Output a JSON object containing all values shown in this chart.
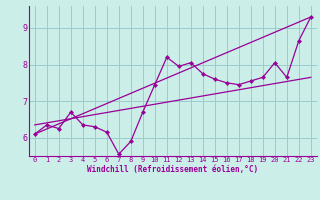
{
  "xlabel": "Windchill (Refroidissement éolien,°C)",
  "bg_color": "#cceee8",
  "line_color": "#990099",
  "grid_color": "#99cccc",
  "x_ticks": [
    0,
    1,
    2,
    3,
    4,
    5,
    6,
    7,
    8,
    9,
    10,
    11,
    12,
    13,
    14,
    15,
    16,
    17,
    18,
    19,
    20,
    21,
    22,
    23
  ],
  "y_ticks": [
    6,
    7,
    8,
    9
  ],
  "ylim": [
    5.5,
    9.6
  ],
  "xlim": [
    -0.5,
    23.5
  ],
  "line1_x": [
    0,
    1,
    2,
    3,
    4,
    5,
    6,
    7,
    8,
    9,
    10,
    11,
    12,
    13,
    14,
    15,
    16,
    17,
    18,
    19,
    20,
    21,
    22,
    23
  ],
  "line1_y": [
    6.1,
    6.35,
    6.25,
    6.7,
    6.35,
    6.3,
    6.15,
    5.55,
    5.9,
    6.7,
    7.45,
    8.2,
    7.95,
    8.05,
    7.75,
    7.6,
    7.5,
    7.45,
    7.55,
    7.65,
    8.05,
    7.65,
    8.65,
    9.3
  ],
  "line2_x": [
    0,
    23
  ],
  "line2_y": [
    6.1,
    9.3
  ],
  "line3_x": [
    0,
    23
  ],
  "line3_y": [
    6.35,
    7.65
  ],
  "tick_fontsize": 5,
  "xlabel_fontsize": 5.5
}
